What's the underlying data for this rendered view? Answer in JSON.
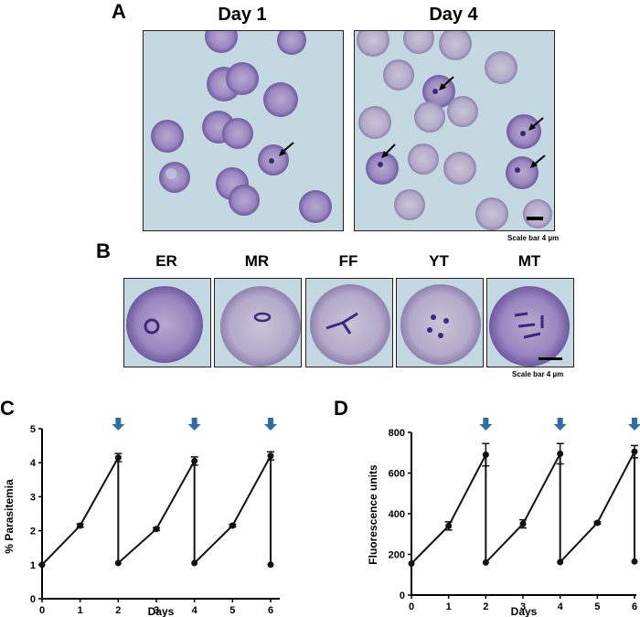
{
  "panels": {
    "A": {
      "letter": "A",
      "titles": [
        "Day 1",
        "Day 4"
      ],
      "scale_label": "Scale bar 4 µm"
    },
    "B": {
      "letter": "B",
      "stages": [
        "ER",
        "MR",
        "FF",
        "YT",
        "MT"
      ],
      "scale_label": "Scale bar 4 µm"
    },
    "C": {
      "letter": "C"
    },
    "D": {
      "letter": "D"
    }
  },
  "chart_data": [
    {
      "type": "line",
      "panel": "C",
      "xlabel": "Days",
      "ylabel": "% Parasitemia",
      "xlim": [
        0,
        6
      ],
      "ylim": [
        0,
        5
      ],
      "xticks": [
        0,
        1,
        2,
        3,
        4,
        5,
        6
      ],
      "yticks": [
        0,
        1,
        2,
        3,
        4,
        5
      ],
      "cycles": [
        {
          "x": [
            0,
            1,
            2
          ],
          "y": [
            1.0,
            2.15,
            4.15
          ],
          "err": [
            0,
            0.05,
            0.12
          ]
        },
        {
          "x": [
            2,
            3,
            4
          ],
          "y": [
            1.05,
            2.05,
            4.05
          ],
          "err": [
            0,
            0.04,
            0.12
          ]
        },
        {
          "x": [
            4,
            5,
            6
          ],
          "y": [
            1.05,
            2.15,
            4.2
          ],
          "err": [
            0,
            0.04,
            0.12
          ]
        }
      ],
      "last_point": {
        "x": 6,
        "y": 1.0
      },
      "arrows_at_x": [
        2,
        4,
        6
      ],
      "color": "#111111",
      "arrow_color": "#2e6ea6"
    },
    {
      "type": "line",
      "panel": "D",
      "xlabel": "Days",
      "ylabel": "Fluorescence units",
      "xlim": [
        0,
        6
      ],
      "ylim": [
        0,
        800
      ],
      "xticks": [
        0,
        1,
        2,
        3,
        4,
        5,
        6
      ],
      "yticks": [
        0,
        200,
        400,
        600,
        800
      ],
      "cycles": [
        {
          "x": [
            0,
            1,
            2
          ],
          "y": [
            155,
            340,
            690
          ],
          "err": [
            0,
            20,
            55
          ]
        },
        {
          "x": [
            2,
            3,
            4
          ],
          "y": [
            160,
            350,
            695
          ],
          "err": [
            0,
            20,
            50
          ]
        },
        {
          "x": [
            4,
            5,
            6
          ],
          "y": [
            162,
            355,
            705
          ],
          "err": [
            0,
            5,
            30
          ]
        }
      ],
      "last_point": {
        "x": 6,
        "y": 165
      },
      "arrows_at_x": [
        2,
        4,
        6
      ],
      "color": "#111111",
      "arrow_color": "#2e6ea6"
    }
  ]
}
